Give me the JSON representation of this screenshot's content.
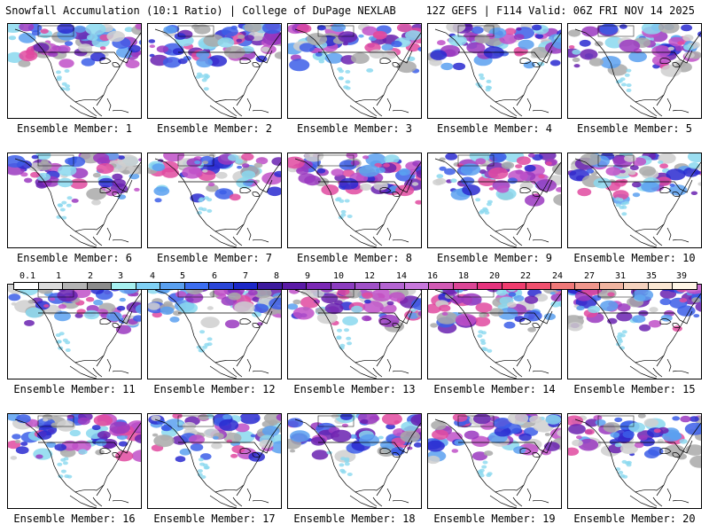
{
  "header": {
    "left": "Snowfall Accumulation (10:1 Ratio) | College of DuPage NEXLAB",
    "right": "12Z GEFS | F114 Valid: 06Z FRI NOV 14 2025"
  },
  "members": [
    "Ensemble Member: 1",
    "Ensemble Member: 2",
    "Ensemble Member: 3",
    "Ensemble Member: 4",
    "Ensemble Member: 5",
    "Ensemble Member: 6",
    "Ensemble Member: 7",
    "Ensemble Member: 8",
    "Ensemble Member: 9",
    "Ensemble Member: 10",
    "Ensemble Member: 11",
    "Ensemble Member: 12",
    "Ensemble Member: 13",
    "Ensemble Member: 14",
    "Ensemble Member: 15",
    "Ensemble Member: 16",
    "Ensemble Member: 17",
    "Ensemble Member: 18",
    "Ensemble Member: 19",
    "Ensemble Member: 20"
  ],
  "legend": {
    "labels": [
      "0.1",
      "1",
      "2",
      "3",
      "4",
      "5",
      "6",
      "7",
      "8",
      "9",
      "10",
      "12",
      "14",
      "16",
      "18",
      "20",
      "22",
      "24",
      "27",
      "31",
      "35",
      "39"
    ],
    "colors": [
      "#ffffff",
      "#dcdcdc",
      "#b4b4b4",
      "#8c8c8c",
      "#a6f0f0",
      "#7fd0f5",
      "#5aa0f0",
      "#3c6ef0",
      "#2a46d8",
      "#1c28c8",
      "#3c1a9e",
      "#5a1aa6",
      "#7a28b4",
      "#8c3cc0",
      "#a050c8",
      "#b464d2",
      "#c878dc",
      "#d25ab4",
      "#dc4696",
      "#e6327d",
      "#f03c6e",
      "#f0506e",
      "#f07878",
      "#f0968c",
      "#f0b4a0",
      "#f5d2be",
      "#fae6d2",
      "#fff5e6"
    ]
  }
}
